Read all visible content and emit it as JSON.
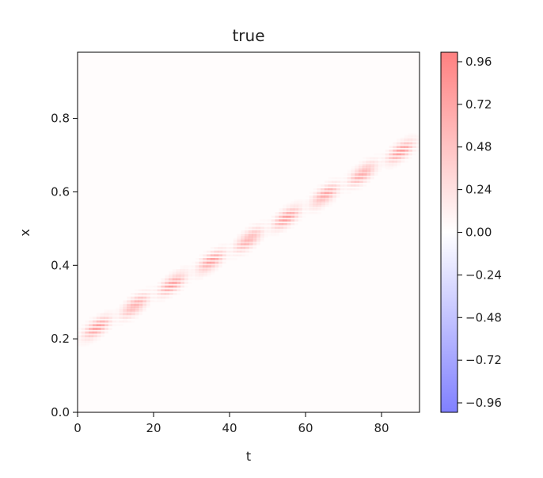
{
  "chart_data": {
    "type": "heatmap",
    "title": "true",
    "xlabel": "t",
    "ylabel": "x",
    "xlim": [
      0,
      90
    ],
    "ylim": [
      0,
      0.98
    ],
    "x_ticks": [
      0,
      20,
      40,
      60,
      80
    ],
    "y_ticks": [
      0.0,
      0.2,
      0.4,
      0.6,
      0.8
    ],
    "x_tick_labels": [
      "0",
      "20",
      "40",
      "60",
      "80"
    ],
    "y_tick_labels": [
      "0.0",
      "0.2",
      "0.4",
      "0.6",
      "0.8"
    ],
    "grid": false,
    "colormap": "bwr (low alpha)",
    "vmin": -0.96,
    "vmax": 0.96,
    "colorbar": {
      "ticks": [
        0.96,
        0.72,
        0.48,
        0.24,
        0.0,
        -0.24,
        -0.48,
        -0.72,
        -0.96
      ],
      "tick_labels": [
        "0.96",
        "0.72",
        "0.48",
        "0.24",
        "0.00",
        "−0.24",
        "−0.48",
        "−0.72",
        "−0.96"
      ],
      "colors": {
        "high": "#ff8080",
        "zero": "#ffffff",
        "low": "#8080ff"
      }
    },
    "pattern": {
      "description_values": "narrow positive pulse travelling linearly",
      "center_start": 0.2,
      "center_slope": 0.006,
      "peak_value": 0.96,
      "width": 0.025,
      "pulse_period_t": 10
    }
  }
}
